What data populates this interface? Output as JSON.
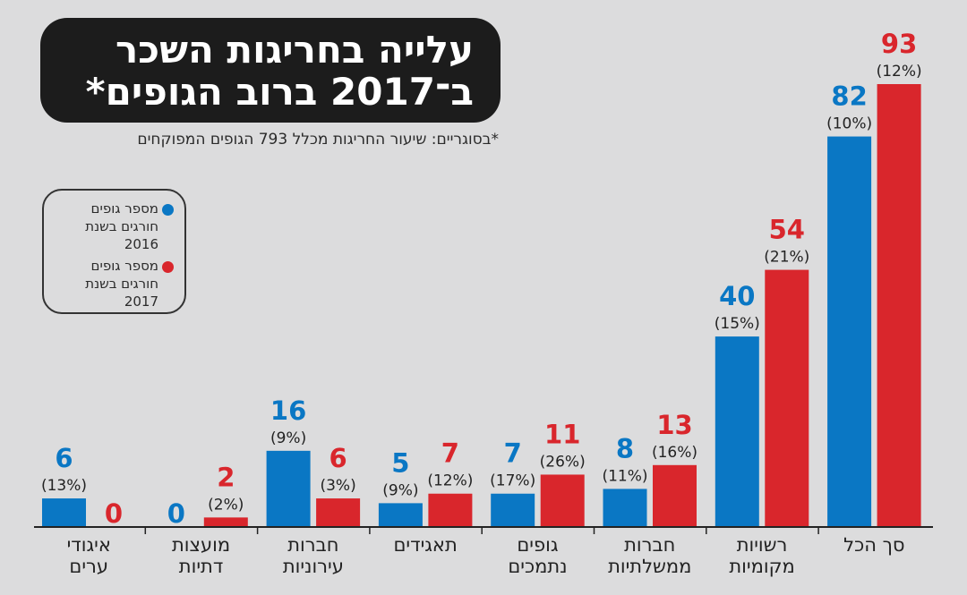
{
  "title": {
    "line1": "עלייה בחריגות השכר",
    "line2": "ב־2017 ברוב הגופים*"
  },
  "footnote": "*בסוגריים: שיעור החריגות מכלל 793 הגופים המפוקחים",
  "legend": [
    {
      "lines": [
        "מספר גופים",
        "חורגים בשנת",
        "2016"
      ],
      "color": "#0a77c4"
    },
    {
      "lines": [
        "מספר גופים",
        "חורגים בשנת",
        "2017"
      ],
      "color": "#d9262c"
    }
  ],
  "colors": {
    "series_2016": "#0a77c4",
    "series_2017": "#d9262c",
    "axis": "#222222"
  },
  "chart_data": {
    "type": "bar",
    "categories": [
      [
        "איגודי",
        "ערים"
      ],
      [
        "מועצות",
        "דתיות"
      ],
      [
        "חברות",
        "עירוניות"
      ],
      [
        "תאגידים"
      ],
      [
        "גופים",
        "נתמכים"
      ],
      [
        "חברות",
        "ממשלתיות"
      ],
      [
        "רשויות",
        "מקומיות"
      ],
      [
        "סך הכל"
      ]
    ],
    "series": [
      {
        "name": "מספר גופים חורגים בשנת 2016",
        "values": [
          6,
          0,
          16,
          5,
          7,
          8,
          40,
          82
        ],
        "pct_labels": [
          "(13%)",
          "",
          "(9%)",
          "(9%)",
          "(17%)",
          "(11%)",
          "(15%)",
          "(10%)"
        ]
      },
      {
        "name": "מספר גופים חורגים בשנת 2017",
        "values": [
          0,
          2,
          6,
          7,
          11,
          13,
          54,
          93
        ],
        "pct_labels": [
          "",
          "(2%)",
          "(3%)",
          "(12%)",
          "(26%)",
          "(16%)",
          "(21%)",
          "(12%)"
        ]
      }
    ],
    "ylim": [
      0,
      93
    ],
    "xlabel": "",
    "ylabel": "",
    "grid": false
  }
}
